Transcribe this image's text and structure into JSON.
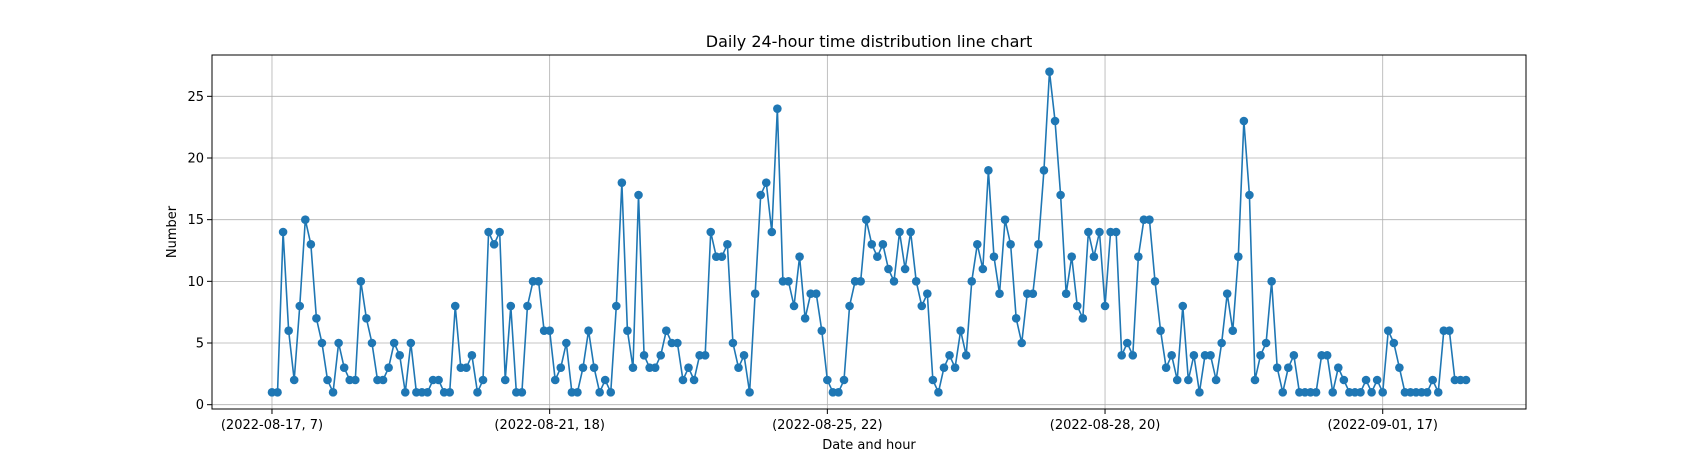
{
  "chart_data": {
    "type": "line",
    "title": "Daily 24-hour time distribution line chart",
    "xlabel": "Date and hour",
    "ylabel": "Number",
    "x_tick_labels": [
      "(2022-08-17, 7)",
      "(2022-08-21, 18)",
      "(2022-08-25, 22)",
      "(2022-08-28, 20)",
      "(2022-09-01, 17)"
    ],
    "x_tick_indices": [
      0,
      50,
      100,
      150,
      200
    ],
    "yticks": [
      0,
      5,
      10,
      15,
      20,
      25
    ],
    "ylim": [
      -0.35,
      28.35
    ],
    "xlim": [
      -10.8,
      225.8
    ],
    "grid": true,
    "colors": {
      "series": "#1f77b4"
    },
    "series": [
      {
        "values": [
          1,
          1,
          14,
          6,
          2,
          8,
          15,
          13,
          7,
          5,
          2,
          1,
          5,
          3,
          2,
          2,
          10,
          7,
          5,
          2,
          2,
          3,
          5,
          4,
          1,
          5,
          1,
          1,
          1,
          2,
          2,
          1,
          1,
          8,
          3,
          3,
          4,
          1,
          2,
          14,
          13,
          14,
          2,
          8,
          1,
          1,
          8,
          10,
          10,
          6,
          6,
          2,
          3,
          5,
          1,
          1,
          3,
          6,
          3,
          1,
          2,
          1,
          8,
          18,
          6,
          3,
          17,
          4,
          3,
          3,
          4,
          6,
          5,
          5,
          2,
          3,
          2,
          4,
          4,
          14,
          12,
          12,
          13,
          5,
          3,
          4,
          1,
          9,
          17,
          18,
          14,
          24,
          10,
          10,
          8,
          12,
          7,
          9,
          9,
          6,
          2,
          1,
          1,
          2,
          8,
          10,
          10,
          15,
          13,
          12,
          13,
          11,
          10,
          14,
          11,
          14,
          10,
          8,
          9,
          2,
          1,
          3,
          4,
          3,
          6,
          4,
          10,
          13,
          11,
          19,
          12,
          9,
          15,
          13,
          7,
          5,
          9,
          9,
          13,
          19,
          27,
          23,
          17,
          9,
          12,
          8,
          7,
          14,
          12,
          14,
          8,
          14,
          14,
          4,
          5,
          4,
          12,
          15,
          15,
          10,
          6,
          3,
          4,
          2,
          8,
          2,
          4,
          1,
          4,
          4,
          2,
          5,
          9,
          6,
          12,
          23,
          17,
          2,
          4,
          5,
          10,
          3,
          1,
          3,
          4,
          1,
          1,
          1,
          1,
          4,
          4,
          1,
          3,
          2,
          1,
          1,
          1,
          2,
          1,
          2,
          1,
          6,
          5,
          3,
          1,
          1,
          1,
          1,
          1,
          2,
          1,
          6,
          6,
          2,
          2,
          2
        ]
      }
    ]
  }
}
